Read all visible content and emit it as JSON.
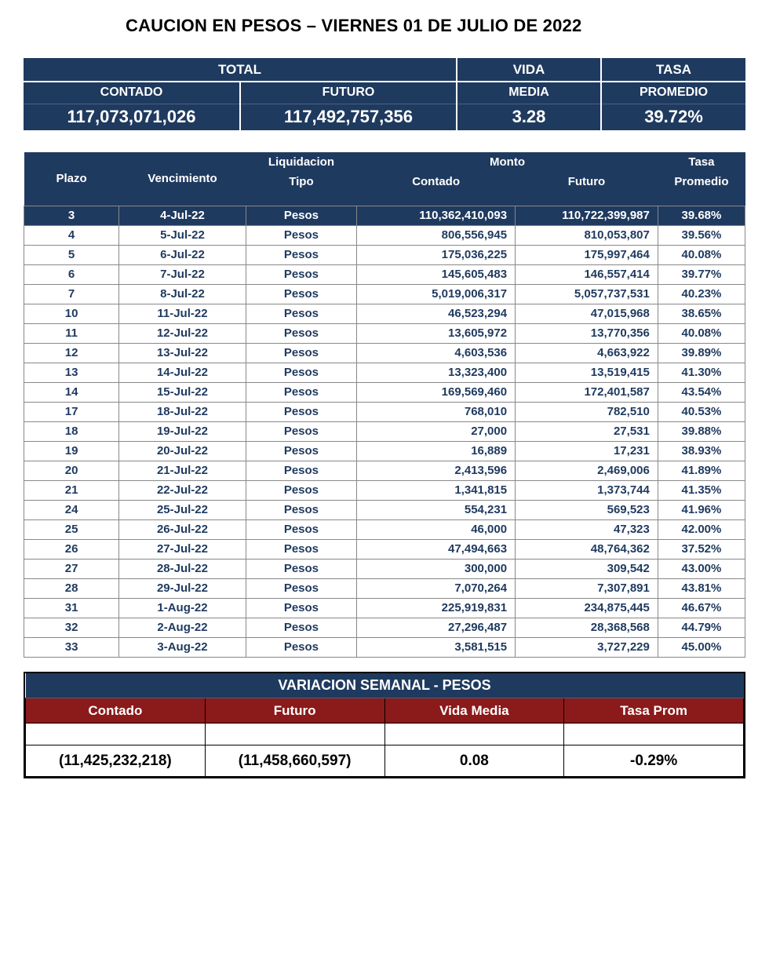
{
  "title": "CAUCION EN PESOS – VIERNES  01 DE JULIO DE 2022",
  "colors": {
    "header_bg": "#1f3a5f",
    "header_fg": "#ffffff",
    "row_fg": "#1f3a5f",
    "border": "#888888",
    "variation_head_bg": "#8b1a1a",
    "page_bg": "#ffffff"
  },
  "summary": {
    "group_total": "TOTAL",
    "group_vida": "VIDA",
    "group_tasa": "TASA",
    "sub_contado": "CONTADO",
    "sub_futuro": "FUTURO",
    "sub_media": "MEDIA",
    "sub_promedio": "PROMEDIO",
    "val_contado": "117,073,071,026",
    "val_futuro": "117,492,757,356",
    "val_media": "3.28",
    "val_promedio": "39.72%",
    "col_widths_pct": [
      30,
      30,
      20,
      20
    ]
  },
  "detail": {
    "headers": {
      "plazo": "Plazo",
      "vencimiento": "Vencimiento",
      "liquidacion": "Liquidacion",
      "tipo": "Tipo",
      "monto": "Monto",
      "contado": "Contado",
      "futuro": "Futuro",
      "tasa": "Tasa",
      "promedio": "Promedio"
    },
    "selected_row_index": 0,
    "rows": [
      {
        "plazo": "3",
        "venc": "4-Jul-22",
        "tipo": "Pesos",
        "contado": "110,362,410,093",
        "futuro": "110,722,399,987",
        "tasa": "39.68%"
      },
      {
        "plazo": "4",
        "venc": "5-Jul-22",
        "tipo": "Pesos",
        "contado": "806,556,945",
        "futuro": "810,053,807",
        "tasa": "39.56%"
      },
      {
        "plazo": "5",
        "venc": "6-Jul-22",
        "tipo": "Pesos",
        "contado": "175,036,225",
        "futuro": "175,997,464",
        "tasa": "40.08%"
      },
      {
        "plazo": "6",
        "venc": "7-Jul-22",
        "tipo": "Pesos",
        "contado": "145,605,483",
        "futuro": "146,557,414",
        "tasa": "39.77%"
      },
      {
        "plazo": "7",
        "venc": "8-Jul-22",
        "tipo": "Pesos",
        "contado": "5,019,006,317",
        "futuro": "5,057,737,531",
        "tasa": "40.23%"
      },
      {
        "plazo": "10",
        "venc": "11-Jul-22",
        "tipo": "Pesos",
        "contado": "46,523,294",
        "futuro": "47,015,968",
        "tasa": "38.65%"
      },
      {
        "plazo": "11",
        "venc": "12-Jul-22",
        "tipo": "Pesos",
        "contado": "13,605,972",
        "futuro": "13,770,356",
        "tasa": "40.08%"
      },
      {
        "plazo": "12",
        "venc": "13-Jul-22",
        "tipo": "Pesos",
        "contado": "4,603,536",
        "futuro": "4,663,922",
        "tasa": "39.89%"
      },
      {
        "plazo": "13",
        "venc": "14-Jul-22",
        "tipo": "Pesos",
        "contado": "13,323,400",
        "futuro": "13,519,415",
        "tasa": "41.30%"
      },
      {
        "plazo": "14",
        "venc": "15-Jul-22",
        "tipo": "Pesos",
        "contado": "169,569,460",
        "futuro": "172,401,587",
        "tasa": "43.54%"
      },
      {
        "plazo": "17",
        "venc": "18-Jul-22",
        "tipo": "Pesos",
        "contado": "768,010",
        "futuro": "782,510",
        "tasa": "40.53%"
      },
      {
        "plazo": "18",
        "venc": "19-Jul-22",
        "tipo": "Pesos",
        "contado": "27,000",
        "futuro": "27,531",
        "tasa": "39.88%"
      },
      {
        "plazo": "19",
        "venc": "20-Jul-22",
        "tipo": "Pesos",
        "contado": "16,889",
        "futuro": "17,231",
        "tasa": "38.93%"
      },
      {
        "plazo": "20",
        "venc": "21-Jul-22",
        "tipo": "Pesos",
        "contado": "2,413,596",
        "futuro": "2,469,006",
        "tasa": "41.89%"
      },
      {
        "plazo": "21",
        "venc": "22-Jul-22",
        "tipo": "Pesos",
        "contado": "1,341,815",
        "futuro": "1,373,744",
        "tasa": "41.35%"
      },
      {
        "plazo": "24",
        "venc": "25-Jul-22",
        "tipo": "Pesos",
        "contado": "554,231",
        "futuro": "569,523",
        "tasa": "41.96%"
      },
      {
        "plazo": "25",
        "venc": "26-Jul-22",
        "tipo": "Pesos",
        "contado": "46,000",
        "futuro": "47,323",
        "tasa": "42.00%"
      },
      {
        "plazo": "26",
        "venc": "27-Jul-22",
        "tipo": "Pesos",
        "contado": "47,494,663",
        "futuro": "48,764,362",
        "tasa": "37.52%"
      },
      {
        "plazo": "27",
        "venc": "28-Jul-22",
        "tipo": "Pesos",
        "contado": "300,000",
        "futuro": "309,542",
        "tasa": "43.00%"
      },
      {
        "plazo": "28",
        "venc": "29-Jul-22",
        "tipo": "Pesos",
        "contado": "7,070,264",
        "futuro": "7,307,891",
        "tasa": "43.81%"
      },
      {
        "plazo": "31",
        "venc": "1-Aug-22",
        "tipo": "Pesos",
        "contado": "225,919,831",
        "futuro": "234,875,445",
        "tasa": "46.67%"
      },
      {
        "plazo": "32",
        "venc": "2-Aug-22",
        "tipo": "Pesos",
        "contado": "27,296,487",
        "futuro": "28,368,568",
        "tasa": "44.79%"
      },
      {
        "plazo": "33",
        "venc": "3-Aug-22",
        "tipo": "Pesos",
        "contado": "3,581,515",
        "futuro": "3,727,229",
        "tasa": "45.00%"
      }
    ]
  },
  "variation": {
    "title": "VARIACION SEMANAL - PESOS",
    "headers": {
      "contado": "Contado",
      "futuro": "Futuro",
      "vida": "Vida Media",
      "tasa": "Tasa Prom"
    },
    "values": {
      "contado": "(11,425,232,218)",
      "futuro": "(11,458,660,597)",
      "vida": "0.08",
      "tasa": "-0.29%"
    },
    "col_widths_pct": [
      25,
      25,
      25,
      25
    ]
  }
}
